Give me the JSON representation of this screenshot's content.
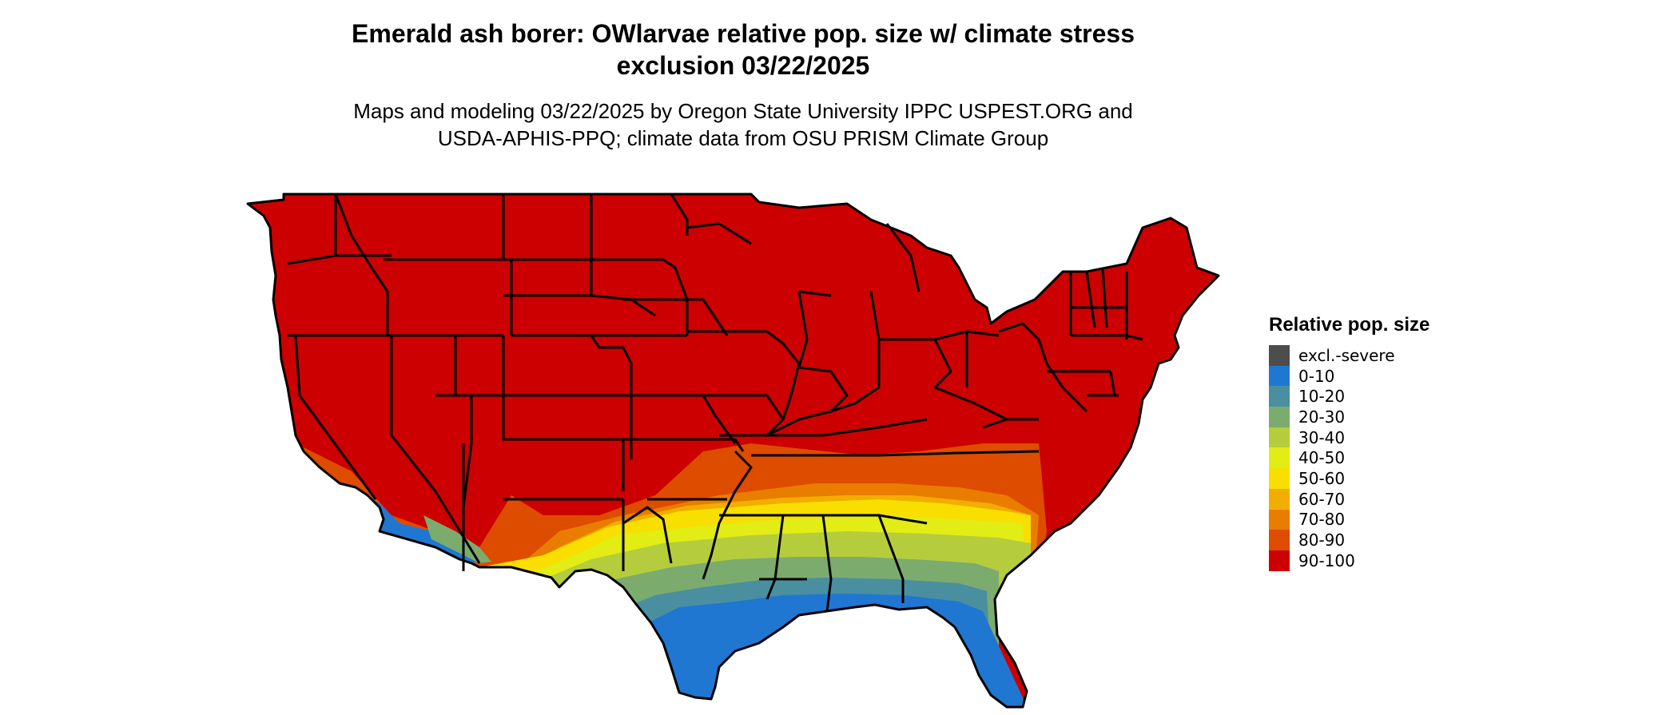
{
  "title": "Emerald ash borer: OWlarvae relative pop. size w/ climate stress exclusion 03/22/2025",
  "title_line1": "Emerald ash borer: OWlarvae relative pop. size w/ climate stress",
  "title_line2": "exclusion 03/22/2025",
  "subtitle_line1": "Maps and modeling 03/22/2025 by Oregon State University IPPC USPEST.ORG and",
  "subtitle_line2": "USDA-APHIS-PPQ; climate data from OSU PRISM Climate Group",
  "legend": {
    "title": "Relative pop. size",
    "items": [
      {
        "label": "excl.-severe",
        "color": "#4d4d4d"
      },
      {
        "label": "0-10",
        "color": "#1f77d2"
      },
      {
        "label": "10-20",
        "color": "#4a8fa0"
      },
      {
        "label": "20-30",
        "color": "#7cab6e"
      },
      {
        "label": "30-40",
        "color": "#b5cd3c"
      },
      {
        "label": "40-50",
        "color": "#e2ec15"
      },
      {
        "label": "50-60",
        "color": "#f8df00"
      },
      {
        "label": "60-70",
        "color": "#f2ad00"
      },
      {
        "label": "70-80",
        "color": "#e97d00"
      },
      {
        "label": "80-90",
        "color": "#de4c00"
      },
      {
        "label": "90-100",
        "color": "#cc0000"
      }
    ]
  }
}
